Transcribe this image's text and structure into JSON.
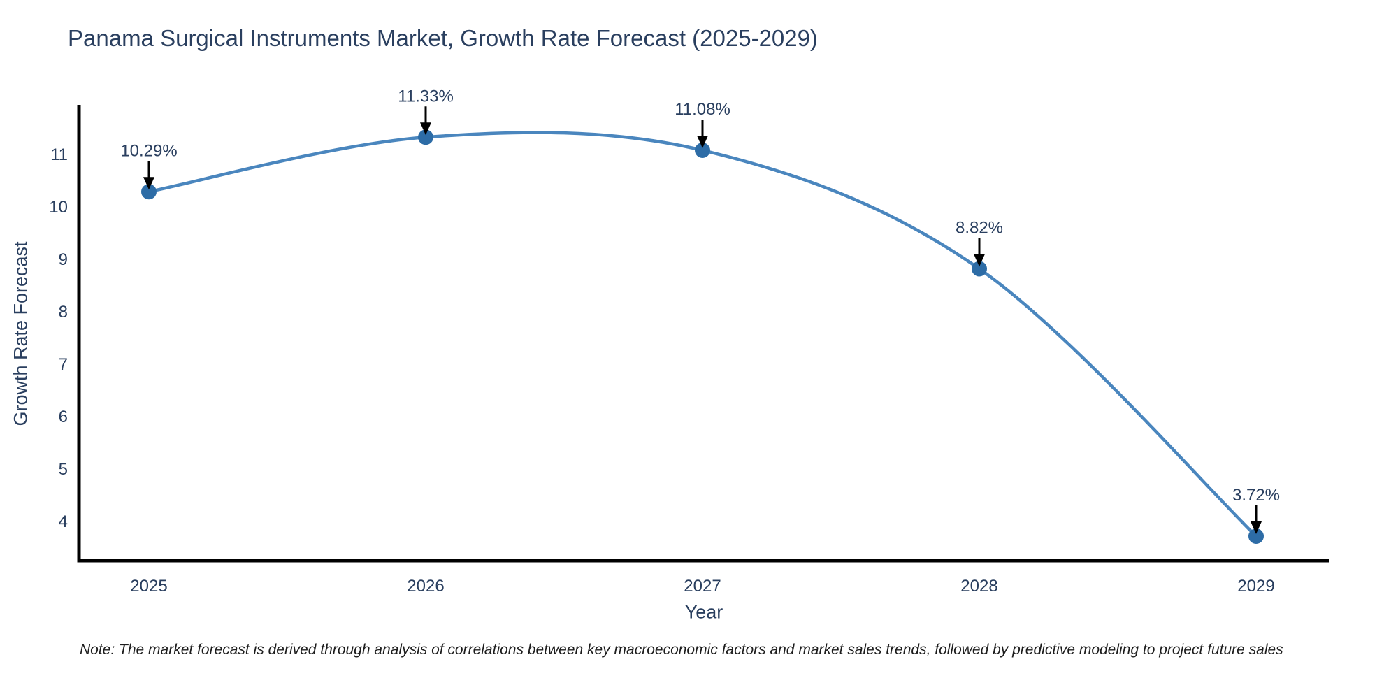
{
  "note": "Note: The market forecast is derived through analysis of correlations between key macroeconomic factors and market sales trends, followed by predictive modeling to project future sales",
  "chart_data": {
    "type": "line",
    "title": "Panama Surgical Instruments Market, Growth Rate Forecast (2025-2029)",
    "xlabel": "Year",
    "ylabel": "Growth Rate Forecast",
    "categories": [
      "2025",
      "2026",
      "2027",
      "2028",
      "2029"
    ],
    "values": [
      10.29,
      11.33,
      11.08,
      8.82,
      3.72
    ],
    "point_labels": [
      "10.29%",
      "11.33%",
      "11.08%",
      "8.82%",
      "3.72%"
    ],
    "yticks": [
      "4",
      "5",
      "6",
      "7",
      "8",
      "9",
      "10",
      "11"
    ],
    "ylim": [
      3.25,
      11.95
    ],
    "line_shape": "spline",
    "grid": false,
    "legend_position": "none",
    "colors": {
      "line": "#4a86be",
      "marker": "#2d6ca6",
      "axis": "#000000",
      "text": "#2a3f5f",
      "annotation_arrow": "#000000",
      "background": "#ffffff"
    }
  }
}
